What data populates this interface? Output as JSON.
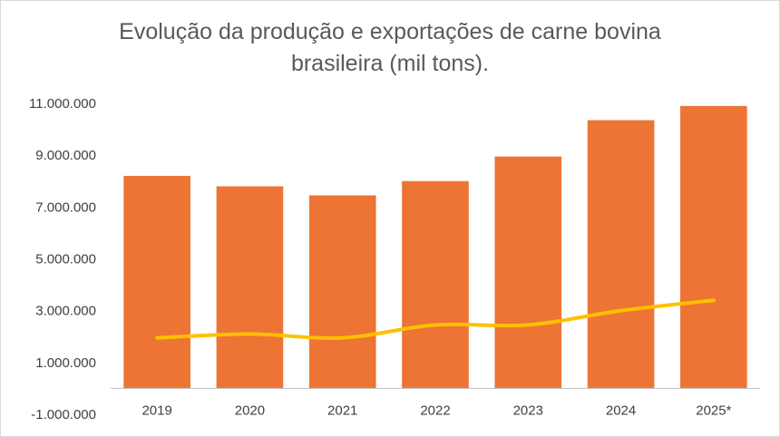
{
  "chart_data": {
    "type": "bar",
    "title_line1": "Evolução da produção e exportações de carne bovina",
    "title_line2": "brasileira (mil tons).",
    "categories": [
      "2019",
      "2020",
      "2021",
      "2022",
      "2023",
      "2024",
      "2025*"
    ],
    "ylim": [
      -1000000,
      11000000
    ],
    "yticks": [
      -1000000,
      1000000,
      3000000,
      5000000,
      7000000,
      9000000,
      11000000
    ],
    "ytick_labels": [
      "-1.000.000",
      "1.000.000",
      "3.000.000",
      "5.000.000",
      "7.000.000",
      "9.000.000",
      "11.000.000"
    ],
    "grid": false,
    "legend": "none",
    "series": [
      {
        "type": "bar",
        "color": "#ED7434",
        "values": [
          8200000,
          7800000,
          7450000,
          8000000,
          8950000,
          10350000,
          10900000
        ]
      },
      {
        "type": "line",
        "smooth": true,
        "color": "#FFC000",
        "values": [
          1950000,
          2100000,
          1950000,
          2450000,
          2450000,
          3000000,
          3400000
        ]
      }
    ]
  }
}
